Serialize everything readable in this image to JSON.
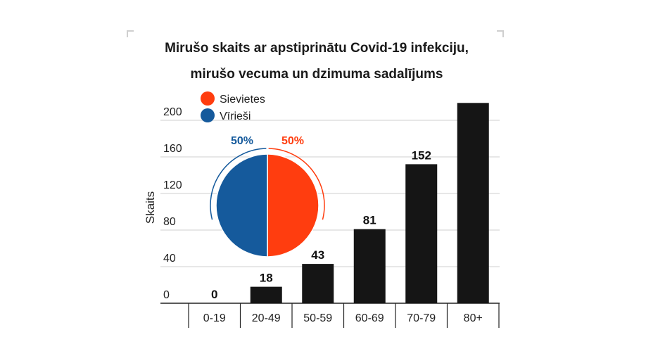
{
  "chart_data": {
    "type": "bar",
    "title_lines": [
      "Mirušo skaits ar apstiprinātu Covid-19 infekciju,",
      "mirušo vecuma un dzimuma sadalījums"
    ],
    "ylabel": "Skaits",
    "xlabel": "",
    "ylim": [
      0,
      220
    ],
    "yticks": [
      0,
      40,
      80,
      120,
      160,
      200
    ],
    "grid": true,
    "categories": [
      "0-19",
      "20-49",
      "50-59",
      "60-69",
      "70-79",
      "80+"
    ],
    "values": [
      0,
      18,
      43,
      81,
      152,
      219
    ],
    "value_labels": [
      "0",
      "18",
      "43",
      "81",
      "152",
      ""
    ],
    "bar_color": "#151515",
    "inset_pie": {
      "type": "pie",
      "legend_placement": "top-left",
      "slices": [
        {
          "name": "Sievietes",
          "value": 50,
          "label": "50%",
          "color": "#ff3d0f"
        },
        {
          "name": "Vīrieši",
          "value": 50,
          "label": "50%",
          "color": "#155a9c"
        }
      ]
    }
  }
}
